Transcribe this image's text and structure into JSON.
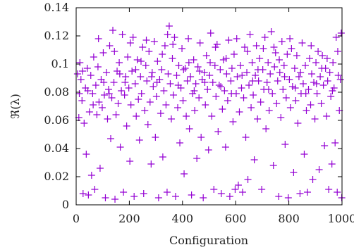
{
  "chart_data": {
    "type": "scatter",
    "title": "",
    "xlabel": "Configuration",
    "ylabel": "ℜ(λ)",
    "xlim": [
      0,
      1000
    ],
    "ylim": [
      0,
      0.14
    ],
    "xticks": [
      0,
      200,
      400,
      600,
      800,
      1000
    ],
    "yticks": [
      0,
      0.02,
      0.04,
      0.06,
      0.08,
      0.1,
      0.12,
      0.14
    ],
    "xtick_labels": [
      "0",
      "200",
      "400",
      "600",
      "800",
      "1000"
    ],
    "ytick_labels": [
      "0",
      "0.02",
      "0.04",
      "0.06",
      "0.08",
      "0.1",
      "0.12",
      "0.14"
    ],
    "marker": "plus",
    "color": "#9400d3",
    "grid": false,
    "legend": "none",
    "series": [
      {
        "points": [
          [
            5,
            0.093
          ],
          [
            10,
            0.062
          ],
          [
            14,
            0.101
          ],
          [
            18,
            0.089
          ],
          [
            22,
            0.074
          ],
          [
            26,
            0.008
          ],
          [
            30,
            0.058
          ],
          [
            35,
            0.083
          ],
          [
            38,
            0.036
          ],
          [
            42,
            0.097
          ],
          [
            46,
            0.007
          ],
          [
            50,
            0.066
          ],
          [
            55,
            0.092
          ],
          [
            58,
            0.021
          ],
          [
            62,
            0.079
          ],
          [
            66,
            0.105
          ],
          [
            70,
            0.011
          ],
          [
            74,
            0.085
          ],
          [
            78,
            0.064
          ],
          [
            82,
            0.098
          ],
          [
            86,
            0.073
          ],
          [
            90,
            0.026
          ],
          [
            94,
            0.089
          ],
          [
            98,
            0.069
          ],
          [
            102,
            0.108
          ],
          [
            106,
            0.078
          ],
          [
            110,
            0.005
          ],
          [
            114,
            0.094
          ],
          [
            118,
            0.061
          ],
          [
            122,
            0.082
          ],
          [
            126,
            0.113
          ],
          [
            130,
            0.047
          ],
          [
            134,
            0.076
          ],
          [
            138,
            0.124
          ],
          [
            142,
            0.087
          ],
          [
            146,
            0.004
          ],
          [
            150,
            0.064
          ],
          [
            154,
            0.095
          ],
          [
            158,
            0.072
          ],
          [
            162,
            0.101
          ],
          [
            166,
            0.041
          ],
          [
            170,
            0.081
          ],
          [
            174,
            0.121
          ],
          [
            178,
            0.009
          ],
          [
            182,
            0.078
          ],
          [
            186,
            0.091
          ],
          [
            190,
            0.056
          ],
          [
            194,
            0.105
          ],
          [
            198,
            0.083
          ],
          [
            202,
            0.031
          ],
          [
            206,
            0.071
          ],
          [
            210,
            0.095
          ],
          [
            214,
            0.119
          ],
          [
            218,
            0.006
          ],
          [
            222,
            0.086
          ],
          [
            226,
            0.063
          ],
          [
            230,
            0.103
          ],
          [
            234,
            0.075
          ],
          [
            238,
            0.046
          ],
          [
            242,
            0.091
          ],
          [
            246,
            0.079
          ],
          [
            250,
            0.112
          ],
          [
            254,
            0.008
          ],
          [
            258,
            0.067
          ],
          [
            262,
            0.099
          ],
          [
            266,
            0.088
          ],
          [
            270,
            0.057
          ],
          [
            274,
            0.109
          ],
          [
            278,
            0.073
          ],
          [
            282,
            0.029
          ],
          [
            286,
            0.094
          ],
          [
            290,
            0.084
          ],
          [
            294,
            0.116
          ],
          [
            298,
            0.048
          ],
          [
            302,
            0.077
          ],
          [
            306,
            0.102
          ],
          [
            310,
            0.005
          ],
          [
            314,
            0.089
          ],
          [
            318,
            0.065
          ],
          [
            322,
            0.096
          ],
          [
            326,
            0.034
          ],
          [
            330,
            0.081
          ],
          [
            334,
            0.113
          ],
          [
            338,
            0.071
          ],
          [
            342,
            0.009
          ],
          [
            346,
            0.093
          ],
          [
            350,
            0.127
          ],
          [
            354,
            0.086
          ],
          [
            358,
            0.061
          ],
          [
            362,
            0.104
          ],
          [
            366,
            0.078
          ],
          [
            370,
            0.119
          ],
          [
            374,
            0.006
          ],
          [
            378,
            0.092
          ],
          [
            382,
            0.069
          ],
          [
            386,
            0.099
          ],
          [
            390,
            0.044
          ],
          [
            394,
            0.083
          ],
          [
            398,
            0.111
          ],
          [
            402,
            0.074
          ],
          [
            406,
            0.022
          ],
          [
            410,
            0.097
          ],
          [
            414,
            0.063
          ],
          [
            418,
            0.088
          ],
          [
            422,
            0.118
          ],
          [
            426,
            0.054
          ],
          [
            430,
            0.091
          ],
          [
            434,
            0.007
          ],
          [
            438,
            0.079
          ],
          [
            442,
            0.103
          ],
          [
            446,
            0.067
          ],
          [
            450,
            0.086
          ],
          [
            454,
            0.033
          ],
          [
            458,
            0.098
          ],
          [
            462,
            0.076
          ],
          [
            466,
            0.115
          ],
          [
            470,
            0.048
          ],
          [
            474,
            0.089
          ],
          [
            478,
            0.005
          ],
          [
            482,
            0.094
          ],
          [
            486,
            0.071
          ],
          [
            490,
            0.106
          ],
          [
            494,
            0.082
          ],
          [
            498,
            0.039
          ],
          [
            502,
            0.092
          ],
          [
            506,
            0.122
          ],
          [
            510,
            0.063
          ],
          [
            514,
            0.087
          ],
          [
            518,
            0.011
          ],
          [
            522,
            0.099
          ],
          [
            526,
            0.077
          ],
          [
            530,
            0.114
          ],
          [
            534,
            0.052
          ],
          [
            538,
            0.085
          ],
          [
            542,
            0.096
          ],
          [
            546,
            0.008
          ],
          [
            550,
            0.068
          ],
          [
            554,
            0.103
          ],
          [
            558,
            0.081
          ],
          [
            562,
            0.041
          ],
          [
            566,
            0.093
          ],
          [
            570,
            0.074
          ],
          [
            574,
            0.117
          ],
          [
            578,
            0.006
          ],
          [
            582,
            0.088
          ],
          [
            586,
            0.097
          ],
          [
            590,
            0.059
          ],
          [
            594,
            0.107
          ],
          [
            598,
            0.011
          ],
          [
            602,
            0.079
          ],
          [
            606,
            0.091
          ],
          [
            610,
            0.014
          ],
          [
            614,
            0.066
          ],
          [
            618,
            0.099
          ],
          [
            622,
            0.083
          ],
          [
            626,
            0.009
          ],
          [
            630,
            0.076
          ],
          [
            634,
            0.112
          ],
          [
            638,
            0.048
          ],
          [
            642,
            0.094
          ],
          [
            646,
            0.018
          ],
          [
            650,
            0.085
          ],
          [
            654,
            0.121
          ],
          [
            658,
            0.069
          ],
          [
            662,
            0.101
          ],
          [
            666,
            0.078
          ],
          [
            670,
            0.032
          ],
          [
            674,
            0.092
          ],
          [
            678,
            0.113
          ],
          [
            682,
            0.061
          ],
          [
            686,
            0.088
          ],
          [
            690,
            0.104
          ],
          [
            694,
            0.073
          ],
          [
            698,
            0.011
          ],
          [
            702,
            0.096
          ],
          [
            706,
            0.082
          ],
          [
            710,
            0.119
          ],
          [
            714,
            0.054
          ],
          [
            718,
            0.087
          ],
          [
            722,
            0.101
          ],
          [
            726,
            0.067
          ],
          [
            730,
            0.093
          ],
          [
            734,
            0.123
          ],
          [
            738,
            0.079
          ],
          [
            742,
            0.028
          ],
          [
            746,
            0.098
          ],
          [
            750,
            0.108
          ],
          [
            754,
            0.072
          ],
          [
            758,
            0.088
          ],
          [
            762,
            0.006
          ],
          [
            766,
            0.094
          ],
          [
            770,
            0.062
          ],
          [
            774,
            0.116
          ],
          [
            778,
            0.082
          ],
          [
            782,
            0.099
          ],
          [
            786,
            0.043
          ],
          [
            790,
            0.076
          ],
          [
            794,
            0.107
          ],
          [
            798,
            0.005
          ],
          [
            802,
            0.089
          ],
          [
            806,
            0.069
          ],
          [
            810,
            0.111
          ],
          [
            814,
            0.084
          ],
          [
            818,
            0.023
          ],
          [
            822,
            0.097
          ],
          [
            826,
            0.074
          ],
          [
            830,
            0.106
          ],
          [
            834,
            0.058
          ],
          [
            838,
            0.091
          ],
          [
            842,
            0.008
          ],
          [
            846,
            0.079
          ],
          [
            850,
            0.115
          ],
          [
            854,
            0.086
          ],
          [
            858,
            0.036
          ],
          [
            862,
            0.099
          ],
          [
            866,
            0.067
          ],
          [
            870,
            0.009
          ],
          [
            874,
            0.082
          ],
          [
            878,
            0.104
          ],
          [
            882,
            0.071
          ],
          [
            886,
            0.093
          ],
          [
            890,
            0.018
          ],
          [
            894,
            0.087
          ],
          [
            898,
            0.061
          ],
          [
            902,
            0.101
          ],
          [
            906,
            0.079
          ],
          [
            910,
            0.109
          ],
          [
            914,
            0.025
          ],
          [
            918,
            0.091
          ],
          [
            922,
            0.072
          ],
          [
            926,
            0.106
          ],
          [
            930,
            0.085
          ],
          [
            934,
            0.042
          ],
          [
            938,
            0.097
          ],
          [
            942,
            0.063
          ],
          [
            946,
            0.088
          ],
          [
            950,
            0.011
          ],
          [
            954,
            0.094
          ],
          [
            958,
            0.077
          ],
          [
            962,
            0.029
          ],
          [
            966,
            0.101
          ],
          [
            970,
            0.083
          ],
          [
            974,
            0.044
          ],
          [
            978,
            0.119
          ],
          [
            982,
            0.009
          ],
          [
            986,
            0.092
          ],
          [
            990,
            0.067
          ],
          [
            994,
            0.089
          ],
          [
            997,
            0.122
          ],
          [
            999,
            0.005
          ],
          [
            12,
            0.079
          ],
          [
            24,
            0.095
          ],
          [
            44,
            0.081
          ],
          [
            64,
            0.071
          ],
          [
            84,
            0.118
          ],
          [
            104,
            0.087
          ],
          [
            124,
            0.079
          ],
          [
            144,
            0.109
          ],
          [
            164,
            0.093
          ],
          [
            184,
            0.087
          ],
          [
            204,
            0.115
          ],
          [
            224,
            0.096
          ],
          [
            244,
            0.102
          ],
          [
            264,
            0.117
          ],
          [
            284,
            0.091
          ],
          [
            304,
            0.087
          ],
          [
            324,
            0.107
          ],
          [
            344,
            0.121
          ],
          [
            364,
            0.114
          ],
          [
            384,
            0.085
          ],
          [
            404,
            0.096
          ],
          [
            424,
            0.101
          ],
          [
            444,
            0.081
          ],
          [
            464,
            0.095
          ],
          [
            484,
            0.087
          ],
          [
            504,
            0.101
          ],
          [
            524,
            0.112
          ],
          [
            544,
            0.084
          ],
          [
            564,
            0.104
          ],
          [
            584,
            0.079
          ],
          [
            604,
            0.118
          ],
          [
            624,
            0.092
          ],
          [
            644,
            0.109
          ],
          [
            664,
            0.088
          ],
          [
            684,
            0.096
          ],
          [
            704,
            0.111
          ],
          [
            724,
            0.082
          ],
          [
            744,
            0.112
          ],
          [
            764,
            0.103
          ],
          [
            784,
            0.091
          ],
          [
            804,
            0.118
          ],
          [
            824,
            0.083
          ],
          [
            844,
            0.094
          ],
          [
            864,
            0.079
          ],
          [
            884,
            0.113
          ],
          [
            904,
            0.086
          ],
          [
            924,
            0.097
          ],
          [
            944,
            0.104
          ],
          [
            964,
            0.081
          ],
          [
            984,
            0.109
          ]
        ]
      }
    ]
  }
}
